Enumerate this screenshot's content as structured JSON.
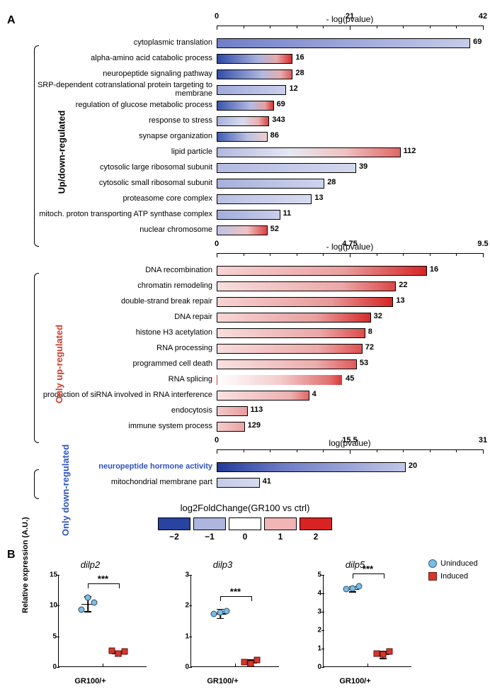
{
  "panelA": {
    "label": "A",
    "fc_legend_title": "log2FoldChange(GR100 vs ctrl)",
    "fc_swatches": [
      {
        "color": "#2843a0",
        "label": "−2"
      },
      {
        "color": "#aeb6e0",
        "label": "−1"
      },
      {
        "color": "#ffffff",
        "label": "0"
      },
      {
        "color": "#f2b5b5",
        "label": "1"
      },
      {
        "color": "#d92323",
        "label": "2"
      }
    ],
    "group1": {
      "side_label": "Up/down-regulated",
      "side_color": "#000000",
      "axis_title": "- log(pvalue)",
      "xmax": 42,
      "xticks": [
        0,
        21,
        42
      ],
      "rows": [
        {
          "label": "cytoplasmic translation",
          "value": 40,
          "count": 69,
          "gradient": "linear-gradient(90deg,#6f7ec8 0%,#c7ccea 100%)"
        },
        {
          "label": "alpha-amino acid catabolic process",
          "value": 12,
          "count": 16,
          "gradient": "linear-gradient(90deg,#2d49a6 0%,#aab3de 55%,#e8a9a9 80%,#d82d2d 100%)"
        },
        {
          "label": "neuropeptide signaling pathway",
          "value": 12,
          "count": 28,
          "gradient": "linear-gradient(90deg,#314da8 0%,#b1b9e1 60%,#e5aeae 85%,#dc5b5b 100%)"
        },
        {
          "label": "SRP-dependent cotranslational protein targeting to membrane",
          "value": 11,
          "count": 12,
          "gradient": "linear-gradient(90deg,#a0aadb 0%,#c9ceeb 100%)"
        },
        {
          "label": "regulation of glucose metabolic process",
          "value": 9,
          "count": 69,
          "gradient": "linear-gradient(90deg,#3a54ac 0%,#b5bbe2 60%,#e6a1a1 85%,#d93030 100%)"
        },
        {
          "label": "response to stress",
          "value": 8.3,
          "count": 343,
          "gradient": "linear-gradient(90deg,#a8b1dd 0%,#d7dbef 50%,#eab0b0 80%,#d84444 100%)"
        },
        {
          "label": "synapse organization",
          "value": 8,
          "count": 86,
          "gradient": "linear-gradient(90deg,#405aaf 0%,#b8bfe3 60%,#eecfcf 100%)"
        },
        {
          "label": "lipid particle",
          "value": 29,
          "count": 112,
          "gradient": "linear-gradient(90deg,#b1b8e0 0%,#e6e8f3 40%,#f0c1c1 70%,#e06767 100%)"
        },
        {
          "label": "cytosolic large ribosomal subunit",
          "value": 22,
          "count": 39,
          "gradient": "linear-gradient(90deg,#b3bae1 0%,#d4d8ee 100%)"
        },
        {
          "label": "cytosolic small ribosomal subunit",
          "value": 17,
          "count": 28,
          "gradient": "linear-gradient(90deg,#a7b0dc 0%,#cfd4ed 100%)"
        },
        {
          "label": "proteasome core complex",
          "value": 15,
          "count": 13,
          "gradient": "linear-gradient(90deg,#bac0e4 0%,#d8dbef 100%)"
        },
        {
          "label": "mitoch. proton transporting ATP synthase complex",
          "value": 10,
          "count": 11,
          "gradient": "linear-gradient(90deg,#a4addb 0%,#c8cdea 100%)"
        },
        {
          "label": "nuclear chromosome",
          "value": 8,
          "count": 52,
          "gradient": "linear-gradient(90deg,#bcc2e4 0%,#efc3c3 60%,#db4343 100%)"
        }
      ]
    },
    "group2": {
      "side_label": "Only up-regulated",
      "side_color": "#d03a2a",
      "axis_title": "- log(pvalue)",
      "xmax": 9.5,
      "xticks": [
        0,
        4.75,
        9.5
      ],
      "rows": [
        {
          "label": "DNA recombination",
          "value": 7.5,
          "count": 16,
          "gradient": "linear-gradient(90deg,#f6d4d4 0%,#eaa0a0 60%,#d62424 100%)"
        },
        {
          "label": "chromatin remodeling",
          "value": 6.4,
          "count": 22,
          "gradient": "linear-gradient(90deg,#f8dede 0%,#eca8a8 70%,#db4747 100%)"
        },
        {
          "label": "double-strand break repair",
          "value": 6.3,
          "count": 13,
          "gradient": "linear-gradient(90deg,#f6d3d3 0%,#e89999 65%,#d52323 100%)"
        },
        {
          "label": "DNA repair",
          "value": 5.5,
          "count": 32,
          "gradient": "linear-gradient(90deg,#f7d7d7 0%,#e99e9e 65%,#d52a2a 100%)"
        },
        {
          "label": "histone H3 acetylation",
          "value": 5.3,
          "count": 8,
          "gradient": "linear-gradient(90deg,#f8dddd 0%,#eba6a6 70%,#dc4b4b 100%)"
        },
        {
          "label": "RNA processing",
          "value": 5.2,
          "count": 72,
          "gradient": "linear-gradient(90deg,#f8dddd 0%,#eca9a9 70%,#dd5151 100%)"
        },
        {
          "label": "programmed cell death",
          "value": 5.0,
          "count": 53,
          "gradient": "linear-gradient(90deg,#f9e1e1 0%,#edafaf 70%,#df5a5a 100%)"
        },
        {
          "label": "RNA splicing",
          "value": 4.5,
          "count": 45,
          "gradient": "linear-gradient(90deg,#ffffff 0%,#f4cccc 50%,#e17070 90%,#d93636 100%)",
          "noborder": true
        },
        {
          "label": "production of siRNA involved in RNA interference",
          "value": 3.3,
          "count": 4,
          "gradient": "linear-gradient(90deg,#f9e2e2 0%,#edb1b1 80%,#e16868 100%)"
        },
        {
          "label": "endocytosis",
          "value": 1.1,
          "count": 113,
          "gradient": "linear-gradient(90deg,#f3c9c9 0%,#e89c9c 100%)"
        },
        {
          "label": "immune system process",
          "value": 1.0,
          "count": 129,
          "gradient": "linear-gradient(90deg,#f4cdcd 0%,#eaa3a3 100%)"
        }
      ]
    },
    "group3": {
      "side_label": "Only down-regulated",
      "side_color": "#2e54c4",
      "axis_title": "log(pvalue)",
      "xmax": 31,
      "xticks": [
        0,
        15.5,
        31
      ],
      "rows": [
        {
          "label": "neuropeptide hormone activity",
          "value": 22,
          "count": 20,
          "gradient": "linear-gradient(90deg,#23399a 0%,#6d7cc6 35%,#c1c7e7 100%)",
          "label_color": "#2e54c4",
          "label_bold": true
        },
        {
          "label": "mitochondrial membrane part",
          "value": 5,
          "count": 41,
          "gradient": "linear-gradient(90deg,#c5cbe9 0%,#d7dbef 100%)"
        }
      ]
    }
  },
  "panelB": {
    "label": "B",
    "ylab": "Relative expression (A.U.)",
    "xlab": "GR100/+",
    "legend": [
      {
        "label": "Uninduced",
        "color": "#78bdea",
        "shape": "circle"
      },
      {
        "label": "Induced",
        "color": "#d9352b",
        "shape": "square"
      }
    ],
    "colors": {
      "uninduced": "#78bdea",
      "induced": "#d9352b"
    },
    "plots": [
      {
        "title": "dilp2",
        "ymax": 15,
        "ystep": 5,
        "uninduced": {
          "x": 0.33,
          "points": [
            9.2,
            11.2,
            10.4
          ],
          "mean": 10.3,
          "err": 1.2
        },
        "induced": {
          "x": 0.67,
          "points": [
            2.5,
            2.1,
            2.4
          ],
          "mean": 2.3,
          "err": 0.4
        },
        "sig": "***"
      },
      {
        "title": "dilp3",
        "ymax": 3,
        "ystep": 1,
        "uninduced": {
          "x": 0.33,
          "points": [
            1.7,
            1.75,
            1.8
          ],
          "mean": 1.75,
          "err": 0.15
        },
        "induced": {
          "x": 0.67,
          "points": [
            0.15,
            0.1,
            0.2
          ],
          "mean": 0.15,
          "err": 0.1
        },
        "sig": "***"
      },
      {
        "title": "dilp5",
        "ymax": 5,
        "ystep": 1,
        "uninduced": {
          "x": 0.33,
          "points": [
            4.2,
            4.25,
            4.35
          ],
          "mean": 4.25,
          "err": 0.15
        },
        "induced": {
          "x": 0.67,
          "points": [
            0.7,
            0.65,
            0.8
          ],
          "mean": 0.7,
          "err": 0.2
        },
        "sig": "***"
      }
    ]
  }
}
